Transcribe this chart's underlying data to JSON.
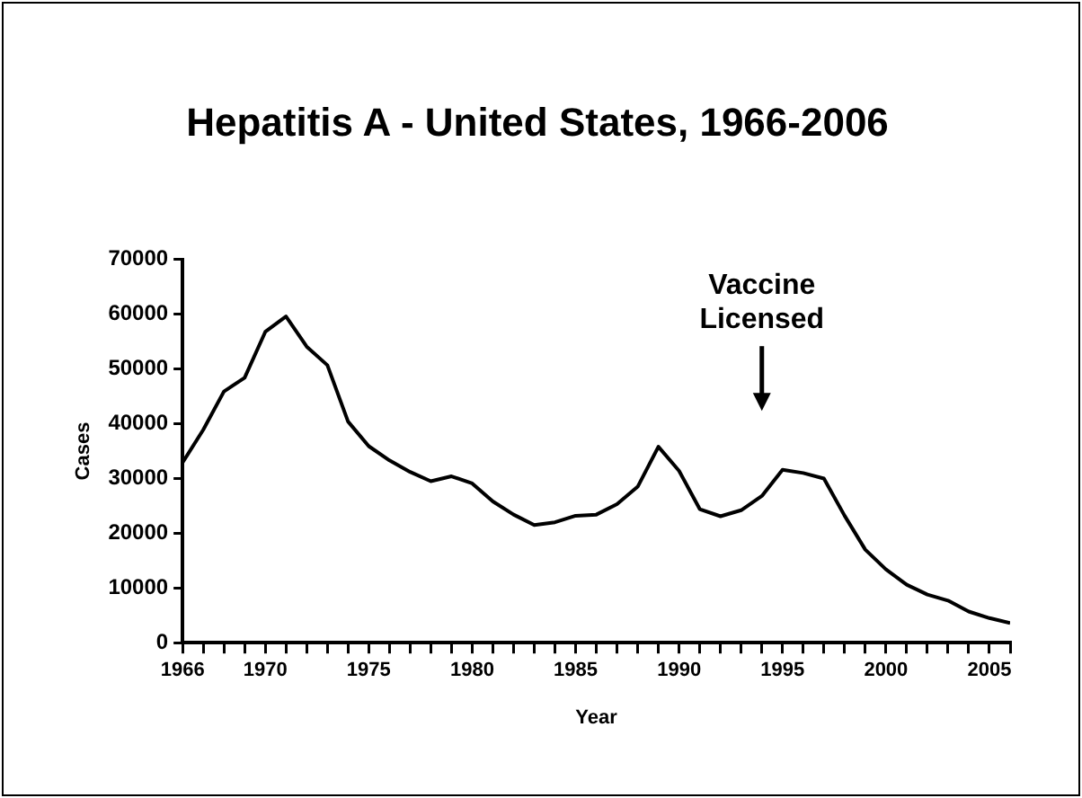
{
  "chart_data": {
    "type": "line",
    "title": "Hepatitis A - United States, 1966-2006",
    "xlabel": "Year",
    "ylabel": "Cases",
    "x": [
      1966,
      1967,
      1968,
      1969,
      1970,
      1971,
      1972,
      1973,
      1974,
      1975,
      1976,
      1977,
      1978,
      1979,
      1980,
      1981,
      1982,
      1983,
      1984,
      1985,
      1986,
      1987,
      1988,
      1989,
      1990,
      1991,
      1992,
      1993,
      1994,
      1995,
      1996,
      1997,
      1998,
      1999,
      2000,
      2001,
      2002,
      2003,
      2004,
      2005,
      2006
    ],
    "series": [
      {
        "color": "#000000",
        "values": [
          32900,
          38900,
          45900,
          48400,
          56800,
          59600,
          54100,
          50700,
          40400,
          35900,
          33300,
          31200,
          29500,
          30400,
          29100,
          25800,
          23400,
          21500,
          22000,
          23200,
          23400,
          25300,
          28500,
          35800,
          31400,
          24400,
          23100,
          24200,
          26800,
          31600,
          31000,
          30000,
          23200,
          17000,
          13400,
          10600,
          8800,
          7700,
          5700,
          4500,
          3600
        ]
      }
    ],
    "xlim": [
      1966,
      2006
    ],
    "xticks": [
      1966,
      {
        "value": 1967,
        "label": null
      },
      {
        "value": 1968,
        "label": null
      },
      {
        "value": 1969,
        "label": null
      },
      1970,
      {
        "value": 1971,
        "label": null
      },
      {
        "value": 1972,
        "label": null
      },
      {
        "value": 1973,
        "label": null
      },
      {
        "value": 1974,
        "label": null
      },
      1975,
      {
        "value": 1976,
        "label": null
      },
      {
        "value": 1977,
        "label": null
      },
      {
        "value": 1978,
        "label": null
      },
      {
        "value": 1979,
        "label": null
      },
      1980,
      {
        "value": 1981,
        "label": null
      },
      {
        "value": 1982,
        "label": null
      },
      {
        "value": 1983,
        "label": null
      },
      {
        "value": 1984,
        "label": null
      },
      1985,
      {
        "value": 1986,
        "label": null
      },
      {
        "value": 1987,
        "label": null
      },
      {
        "value": 1988,
        "label": null
      },
      {
        "value": 1989,
        "label": null
      },
      1990,
      {
        "value": 1991,
        "label": null
      },
      {
        "value": 1992,
        "label": null
      },
      {
        "value": 1993,
        "label": null
      },
      {
        "value": 1994,
        "label": null
      },
      1995,
      {
        "value": 1996,
        "label": null
      },
      {
        "value": 1997,
        "label": null
      },
      {
        "value": 1998,
        "label": null
      },
      {
        "value": 1999,
        "label": null
      },
      2000,
      {
        "value": 2001,
        "label": null
      },
      {
        "value": 2002,
        "label": null
      },
      {
        "value": 2003,
        "label": null
      },
      {
        "value": 2004,
        "label": null
      },
      2005,
      {
        "value": 2006,
        "label": null
      }
    ],
    "ylim": [
      0,
      70000
    ],
    "yticks": [
      0,
      10000,
      20000,
      30000,
      40000,
      50000,
      60000,
      70000
    ],
    "annotations": [
      "Vaccine\nLicensed"
    ],
    "grid": false,
    "legend": false,
    "marker": "none",
    "line_style": "solid"
  }
}
